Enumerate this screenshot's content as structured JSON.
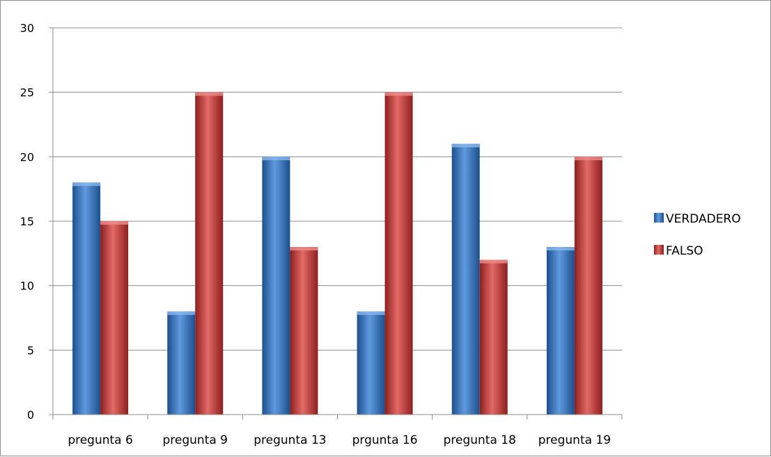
{
  "chart_data": {
    "type": "bar",
    "categories": [
      "pregunta 6",
      "pregunta 9",
      "pregunta 13",
      "prgunta 16",
      "pregunta 18",
      "pregunta 19"
    ],
    "series": [
      {
        "name": "VERDADERO",
        "values": [
          18,
          8,
          20,
          8,
          21,
          13
        ],
        "color": "#2e6db5"
      },
      {
        "name": "FALSO",
        "values": [
          15,
          25,
          13,
          25,
          12,
          20
        ],
        "color": "#c0312f"
      }
    ],
    "ylim": [
      0,
      30
    ],
    "yticks": [
      0,
      5,
      10,
      15,
      20,
      25,
      30
    ],
    "grid": true,
    "legend": "right"
  }
}
